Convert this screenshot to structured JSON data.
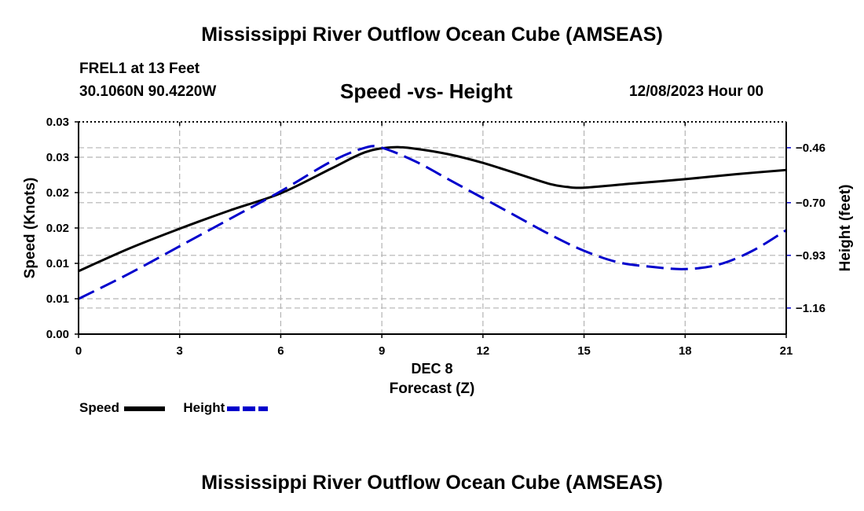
{
  "header": {
    "title": "Mississippi River Outflow Ocean Cube (AMSEAS)",
    "station": "FREL1 at 13 Feet",
    "location": "30.1060N  90.4220W",
    "date": "12/08/2023 Hour 00",
    "footer_title": "Mississippi River Outflow Ocean Cube (AMSEAS)"
  },
  "chart_data": {
    "type": "line",
    "title": "Speed -vs- Height",
    "xlabel": "Forecast (Z)",
    "xsublabel": "DEC 8",
    "ylabel": "Speed (Knots)",
    "y2label": "Height (feet)",
    "xlim": [
      0,
      21
    ],
    "ylim": [
      0,
      0.03
    ],
    "y2lim": [
      -1.274,
      -0.347
    ],
    "x_ticks": [
      0,
      3,
      6,
      9,
      12,
      15,
      18,
      21
    ],
    "y_ticks": [
      0,
      0.005,
      0.01,
      0.015,
      0.02,
      0.025,
      0.03
    ],
    "y_tick_labels": [
      "0.00",
      "0.01",
      "0.01",
      "0.02",
      "0.02",
      "0.03",
      "0.03"
    ],
    "y2_ticks": [
      -0.46,
      -0.7,
      -0.93,
      -1.16
    ],
    "y2_tick_labels": [
      "−0.46",
      "−0.70",
      "−0.93",
      "−1.16"
    ],
    "grid": true,
    "legend_position": "bottom-left",
    "series": [
      {
        "name": "Speed",
        "axis": "left",
        "color": "#000000",
        "dash": "solid",
        "x": [
          0,
          1.5,
          3,
          4.5,
          6,
          7.5,
          8.5,
          9.3,
          10,
          11,
          12,
          13,
          14,
          14.5,
          15,
          16.5,
          18,
          19.5,
          21
        ],
        "values": [
          0.0089,
          0.0121,
          0.0149,
          0.0175,
          0.0199,
          0.0234,
          0.0257,
          0.0264,
          0.0262,
          0.0254,
          0.0242,
          0.0227,
          0.0212,
          0.0208,
          0.0207,
          0.0213,
          0.0219,
          0.0226,
          0.0232
        ]
      },
      {
        "name": "Height",
        "axis": "right",
        "color": "#0000cc",
        "dash": "dashed",
        "x": [
          0,
          1.5,
          3,
          4.5,
          6,
          7.5,
          8.5,
          9,
          10,
          11,
          12,
          13,
          14,
          15,
          16,
          17,
          18,
          19,
          20,
          21
        ],
        "values": [
          -1.12,
          -1.01,
          -0.89,
          -0.77,
          -0.65,
          -0.52,
          -0.46,
          -0.46,
          -0.52,
          -0.6,
          -0.68,
          -0.76,
          -0.84,
          -0.91,
          -0.96,
          -0.98,
          -0.99,
          -0.97,
          -0.91,
          -0.82
        ]
      }
    ],
    "legend": [
      {
        "label": "Speed",
        "color": "#000000",
        "dash": "solid"
      },
      {
        "label": "Height",
        "color": "#0000cc",
        "dash": "dashed"
      }
    ]
  }
}
